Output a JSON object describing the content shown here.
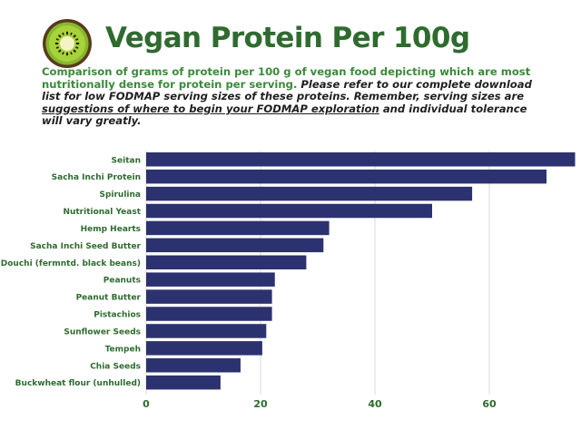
{
  "header": {
    "title": "Vegan Protein Per 100g",
    "desc_lead": "Comparison of grams of protein per 100 g of vegan food depicting which are most nutritionally dense for protein per serving.",
    "desc_mid": " Please refer to our complete download list for low FODMAP serving sizes of these proteins. Remember, serving sizes are ",
    "desc_underline": "suggestions of where to begin your FODMAP exploration",
    "desc_tail": " and individual tolerance will vary greatly.",
    "logo_icon": "kiwi-icon"
  },
  "colors": {
    "bar": "#2c3170",
    "title_green": "#2f6b2f",
    "label_green": "#2e6b2e",
    "lead_green": "#3a8a3a",
    "grid": "#d9d9d9"
  },
  "chart_data": {
    "type": "bar",
    "orientation": "horizontal",
    "categories": [
      "Seitan",
      "Sacha Inchi Protein",
      "Spirulina",
      "Nutritional Yeast",
      "Hemp Hearts",
      "Sacha Inchi Seed Butter",
      "Douchi (fermntd. black beans)",
      "Peanuts",
      "Peanut Butter",
      "Pistachios",
      "Sunflower Seeds",
      "Tempeh",
      "Chia Seeds",
      "Buckwheat flour (unhulled)"
    ],
    "values": [
      75,
      70,
      57,
      50,
      32,
      31,
      28,
      22.5,
      22,
      22,
      21,
      20.3,
      16.5,
      13
    ],
    "xlim": [
      0,
      75
    ],
    "xticks": [
      "0",
      "20",
      "40",
      "60"
    ],
    "title": "",
    "xlabel": "",
    "ylabel": "",
    "grid": true,
    "legend": "none"
  }
}
